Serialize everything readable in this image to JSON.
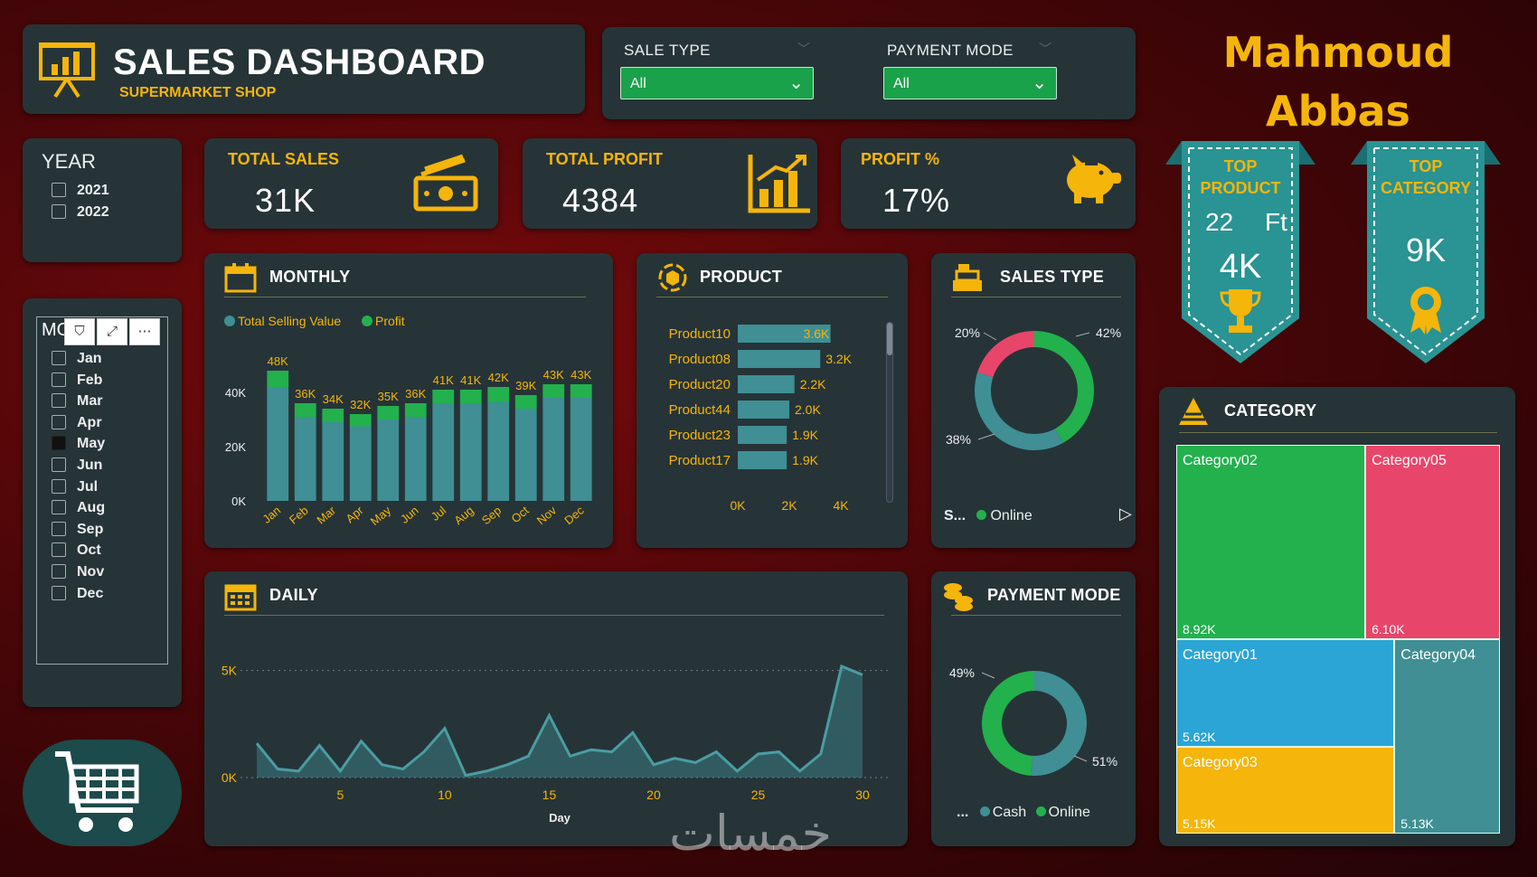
{
  "header": {
    "title": "SALES DASHBOARD",
    "subtitle": "SUPERMARKET SHOP",
    "icon": "presentation-chart-icon"
  },
  "filters": {
    "sale_type": {
      "label": "SALE TYPE",
      "value": "All"
    },
    "payment_mode": {
      "label": "PAYMENT MODE",
      "value": "All"
    }
  },
  "author": {
    "line1": "Mahmoud",
    "line2": "Abbas"
  },
  "year_slicer": {
    "title": "YEAR",
    "items": [
      "2021",
      "2022"
    ]
  },
  "kpis": {
    "total_sales": {
      "label": "TOTAL SALES",
      "value": "31K",
      "icon": "money-icon"
    },
    "total_profit": {
      "label": "TOTAL PROFIT",
      "value": "4384",
      "icon": "bar-growth-icon"
    },
    "profit_pct": {
      "label": "PROFIT %",
      "value": "17%",
      "icon": "piggy-bank-icon"
    }
  },
  "top_product": {
    "line1": "TOP",
    "line2": "PRODUCT",
    "size": "22",
    "unit": "Ft",
    "value": "4K",
    "icon": "trophy-icon"
  },
  "top_category": {
    "line1": "TOP",
    "line2": "CATEGORY",
    "value": "9K",
    "icon": "rosette-icon"
  },
  "month_slicer": {
    "title": "MO",
    "items": [
      "Jan",
      "Feb",
      "Mar",
      "Apr",
      "May",
      "Jun",
      "Jul",
      "Aug",
      "Sep",
      "Oct",
      "Nov",
      "Dec"
    ],
    "toolbar": {
      "filter": "⛉",
      "expand": "⤢",
      "more": "⋯"
    }
  },
  "colors": {
    "accent": "#f5b50a",
    "teal": "#3f8f94",
    "green": "#22b14c",
    "pink": "#e8456a",
    "blue": "#2aa5d6",
    "panel": "#263438"
  },
  "charts": {
    "monthly": {
      "title": "MONTHLY",
      "legend1": "Total Selling Value",
      "legend2": "Profit"
    },
    "product": {
      "title": "PRODUCT"
    },
    "sales_type": {
      "title": "SALES TYPE",
      "legend_prefix": "S...",
      "legend_item": "Online"
    },
    "daily": {
      "title": "DAILY"
    },
    "payment_mode": {
      "title": "PAYMENT MODE",
      "legend_prefix": "...",
      "legend1": "Cash",
      "legend2": "Online"
    },
    "category": {
      "title": "CATEGORY"
    }
  },
  "chart_data": [
    {
      "id": "monthly",
      "type": "bar",
      "stacked": true,
      "categories": [
        "Jan",
        "Feb",
        "Mar",
        "Apr",
        "May",
        "Jun",
        "Jul",
        "Aug",
        "Sep",
        "Oct",
        "Nov",
        "Dec"
      ],
      "series": [
        {
          "name": "Total Selling Value",
          "values": [
            42000,
            31000,
            29000,
            27500,
            30000,
            31000,
            36000,
            36000,
            36500,
            34000,
            38000,
            38000
          ]
        },
        {
          "name": "Profit",
          "values": [
            6000,
            5000,
            5000,
            4500,
            5000,
            5000,
            5000,
            5000,
            5500,
            5000,
            5000,
            5000
          ]
        }
      ],
      "data_labels": [
        "48K",
        "36K",
        "34K",
        "32K",
        "35K",
        "36K",
        "41K",
        "41K",
        "42K",
        "39K",
        "43K",
        "43K"
      ],
      "yticks": [
        "0K",
        "20K",
        "40K"
      ],
      "ylim": [
        0,
        50000
      ]
    },
    {
      "id": "product",
      "type": "bar",
      "orientation": "horizontal",
      "categories": [
        "Product10",
        "Product08",
        "Product20",
        "Product44",
        "Product23",
        "Product17"
      ],
      "values": [
        3600,
        3200,
        2200,
        2000,
        1900,
        1900
      ],
      "data_labels": [
        "3.6K",
        "3.2K",
        "2.2K",
        "2.0K",
        "1.9K",
        "1.9K"
      ],
      "xticks": [
        "0K",
        "2K",
        "4K"
      ],
      "xlim": [
        0,
        4000
      ]
    },
    {
      "id": "sales_type",
      "type": "pie",
      "donut": true,
      "values": [
        42,
        38,
        20
      ],
      "labels": [
        "42%",
        "38%",
        "20%"
      ],
      "colors": [
        "#22b14c",
        "#3f8f94",
        "#e8456a"
      ]
    },
    {
      "id": "daily",
      "type": "area",
      "x": [
        1,
        2,
        3,
        4,
        5,
        6,
        7,
        8,
        9,
        10,
        11,
        12,
        13,
        14,
        15,
        16,
        17,
        18,
        19,
        20,
        21,
        22,
        23,
        24,
        25,
        26,
        27,
        28,
        29,
        30
      ],
      "values": [
        1600,
        400,
        300,
        1500,
        300,
        1700,
        600,
        400,
        1200,
        2300,
        100,
        300,
        600,
        1000,
        2900,
        1000,
        1300,
        1200,
        2100,
        600,
        900,
        700,
        1200,
        300,
        1100,
        1200,
        300,
        1100,
        5200,
        4800
      ],
      "xticks": [
        "5",
        "10",
        "15",
        "20",
        "25",
        "30"
      ],
      "yticks": [
        "0K",
        "5K"
      ],
      "xlabel": "Day",
      "ylim": [
        0,
        6000
      ]
    },
    {
      "id": "payment_mode",
      "type": "pie",
      "donut": true,
      "values": [
        51,
        49
      ],
      "labels": [
        "51%",
        "49%"
      ],
      "colors": [
        "#3f8f94",
        "#22b14c"
      ]
    },
    {
      "id": "category",
      "type": "treemap",
      "items": [
        {
          "name": "Category02",
          "value": "8.92K",
          "color": "#22b14c"
        },
        {
          "name": "Category05",
          "value": "6.10K",
          "color": "#e8456a"
        },
        {
          "name": "Category01",
          "value": "5.62K",
          "color": "#2aa5d6"
        },
        {
          "name": "Category04",
          "value": "5.13K",
          "color": "#3f8f94"
        },
        {
          "name": "Category03",
          "value": "5.15K",
          "color": "#f5b50a"
        }
      ]
    }
  ],
  "watermark": "خمسات"
}
